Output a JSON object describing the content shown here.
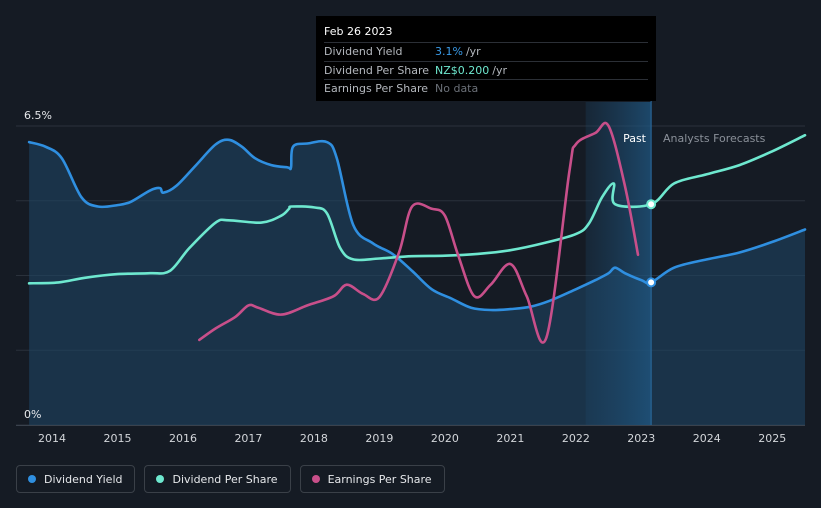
{
  "tooltip": {
    "date": "Feb 26 2023",
    "rows": [
      {
        "label": "Dividend Yield",
        "value": "3.1%",
        "unit": "/yr",
        "color": "#3a9be8"
      },
      {
        "label": "Dividend Per Share",
        "value": "NZ$0.200",
        "unit": "/yr",
        "color": "#6ee8cf"
      },
      {
        "label": "Earnings Per Share",
        "value": "No data",
        "unit": "",
        "color": "#6b7078"
      }
    ]
  },
  "legend": [
    {
      "label": "Dividend Yield",
      "color": "#2f8fe0"
    },
    {
      "label": "Dividend Per Share",
      "color": "#6ee8cf"
    },
    {
      "label": "Earnings Per Share",
      "color": "#c84f8a"
    }
  ],
  "chart_data": {
    "type": "line",
    "y_axis": {
      "top_label": "6.5%",
      "bottom_label": "0%",
      "ylim": [
        0,
        6.5
      ],
      "unit": "%"
    },
    "x_tick_labels": [
      "2014",
      "2015",
      "2016",
      "2017",
      "2018",
      "2019",
      "2020",
      "2021",
      "2022",
      "2023",
      "2024",
      "2025"
    ],
    "xlim": [
      2013.45,
      2025.5
    ],
    "grid": true,
    "region_labels": {
      "past": "Past",
      "forecast": "Analysts Forecasts"
    },
    "forecast_start": 2023.15,
    "highlight_band": [
      2022.15,
      2023.15
    ],
    "colors": {
      "yield": "#2f8fe0",
      "dps": "#6ee8cf",
      "eps": "#c84f8a"
    },
    "series": [
      {
        "name": "Dividend Yield",
        "key": "yield",
        "points": [
          [
            2013.65,
            6.15
          ],
          [
            2013.9,
            6.05
          ],
          [
            2014.15,
            5.8
          ],
          [
            2014.45,
            4.95
          ],
          [
            2014.7,
            4.75
          ],
          [
            2015.0,
            4.78
          ],
          [
            2015.2,
            4.85
          ],
          [
            2015.5,
            5.1
          ],
          [
            2015.65,
            5.15
          ],
          [
            2015.7,
            5.05
          ],
          [
            2015.9,
            5.2
          ],
          [
            2016.2,
            5.65
          ],
          [
            2016.5,
            6.1
          ],
          [
            2016.7,
            6.2
          ],
          [
            2016.9,
            6.05
          ],
          [
            2017.1,
            5.8
          ],
          [
            2017.35,
            5.65
          ],
          [
            2017.6,
            5.6
          ],
          [
            2017.65,
            5.6
          ],
          [
            2017.68,
            6.05
          ],
          [
            2017.9,
            6.12
          ],
          [
            2018.2,
            6.15
          ],
          [
            2018.35,
            5.8
          ],
          [
            2018.6,
            4.35
          ],
          [
            2018.9,
            3.95
          ],
          [
            2019.2,
            3.72
          ],
          [
            2019.5,
            3.35
          ],
          [
            2019.8,
            2.95
          ],
          [
            2020.1,
            2.75
          ],
          [
            2020.4,
            2.55
          ],
          [
            2020.7,
            2.5
          ],
          [
            2021.0,
            2.52
          ],
          [
            2021.3,
            2.57
          ],
          [
            2021.6,
            2.7
          ],
          [
            2022.0,
            2.95
          ],
          [
            2022.3,
            3.15
          ],
          [
            2022.5,
            3.3
          ],
          [
            2022.6,
            3.42
          ],
          [
            2022.75,
            3.3
          ],
          [
            2023.0,
            3.15
          ],
          [
            2023.15,
            3.1
          ],
          [
            2023.5,
            3.42
          ],
          [
            2024.0,
            3.6
          ],
          [
            2024.5,
            3.75
          ],
          [
            2025.0,
            3.98
          ],
          [
            2025.5,
            4.25
          ]
        ]
      },
      {
        "name": "Dividend Per Share",
        "key": "dps",
        "points": [
          [
            2013.65,
            3.08
          ],
          [
            2014.1,
            3.1
          ],
          [
            2014.5,
            3.2
          ],
          [
            2015.0,
            3.28
          ],
          [
            2015.5,
            3.3
          ],
          [
            2015.8,
            3.35
          ],
          [
            2016.1,
            3.85
          ],
          [
            2016.5,
            4.4
          ],
          [
            2016.7,
            4.45
          ],
          [
            2017.2,
            4.4
          ],
          [
            2017.5,
            4.55
          ],
          [
            2017.62,
            4.7
          ],
          [
            2017.66,
            4.75
          ],
          [
            2018.0,
            4.73
          ],
          [
            2018.2,
            4.6
          ],
          [
            2018.4,
            3.85
          ],
          [
            2018.6,
            3.6
          ],
          [
            2019.0,
            3.62
          ],
          [
            2019.5,
            3.67
          ],
          [
            2020.0,
            3.68
          ],
          [
            2020.5,
            3.72
          ],
          [
            2021.0,
            3.8
          ],
          [
            2021.5,
            3.95
          ],
          [
            2022.0,
            4.15
          ],
          [
            2022.2,
            4.38
          ],
          [
            2022.4,
            4.95
          ],
          [
            2022.58,
            5.25
          ],
          [
            2022.6,
            4.8
          ],
          [
            2023.15,
            4.8
          ],
          [
            2023.5,
            5.25
          ],
          [
            2024.0,
            5.45
          ],
          [
            2024.5,
            5.65
          ],
          [
            2025.0,
            5.95
          ],
          [
            2025.5,
            6.3
          ]
        ]
      },
      {
        "name": "Earnings Per Share",
        "key": "eps",
        "points": [
          [
            2016.25,
            1.85
          ],
          [
            2016.5,
            2.1
          ],
          [
            2016.8,
            2.35
          ],
          [
            2017.0,
            2.6
          ],
          [
            2017.15,
            2.55
          ],
          [
            2017.5,
            2.4
          ],
          [
            2017.9,
            2.6
          ],
          [
            2018.3,
            2.8
          ],
          [
            2018.5,
            3.05
          ],
          [
            2018.75,
            2.85
          ],
          [
            2019.0,
            2.78
          ],
          [
            2019.3,
            3.75
          ],
          [
            2019.5,
            4.75
          ],
          [
            2019.8,
            4.7
          ],
          [
            2020.0,
            4.55
          ],
          [
            2020.2,
            3.7
          ],
          [
            2020.45,
            2.8
          ],
          [
            2020.7,
            3.05
          ],
          [
            2021.0,
            3.5
          ],
          [
            2021.25,
            2.8
          ],
          [
            2021.55,
            1.9
          ],
          [
            2021.9,
            5.5
          ],
          [
            2022.0,
            6.1
          ],
          [
            2022.3,
            6.35
          ],
          [
            2022.5,
            6.5
          ],
          [
            2022.75,
            5.2
          ],
          [
            2022.95,
            3.7
          ]
        ]
      }
    ],
    "markers": [
      {
        "series": "yield",
        "x": 2023.15,
        "y": 3.1
      },
      {
        "series": "dps",
        "x": 2023.15,
        "y": 4.8
      }
    ]
  }
}
